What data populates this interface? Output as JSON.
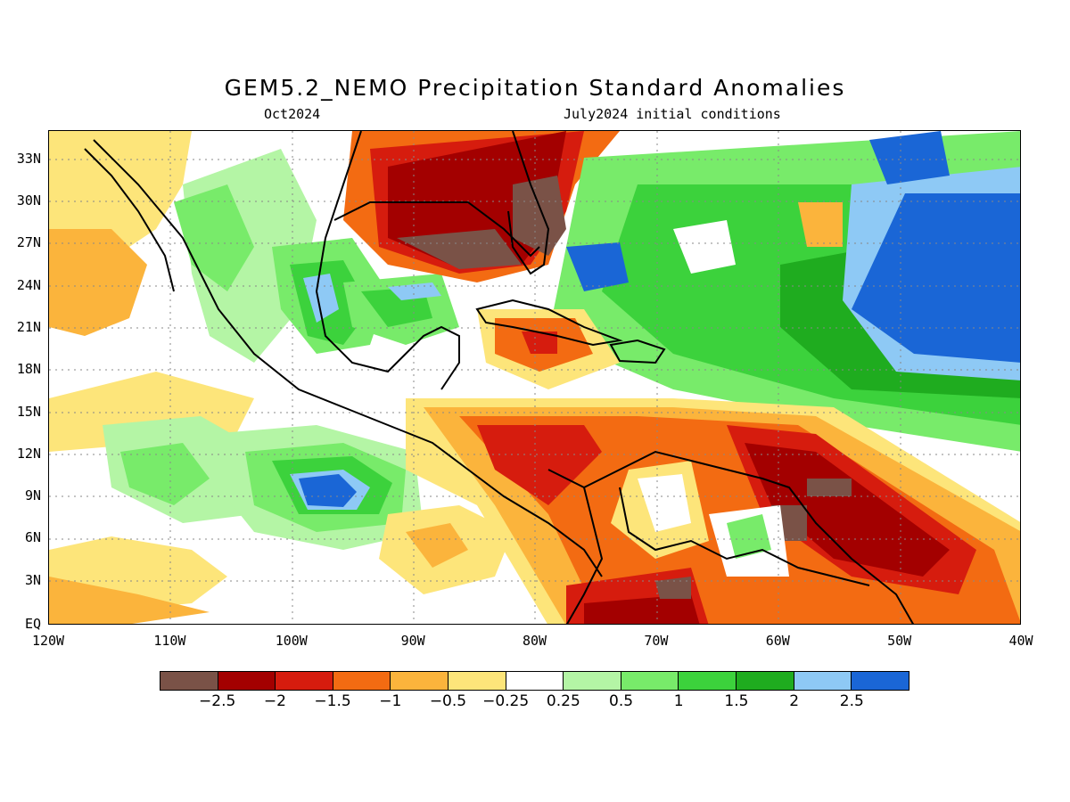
{
  "title": "GEM5.2_NEMO Precipitation Standard Anomalies",
  "subtitle_left": "Oct2024",
  "subtitle_right": "July2024 initial conditions",
  "lat_labels": [
    "33N",
    "30N",
    "27N",
    "24N",
    "21N",
    "18N",
    "15N",
    "12N",
    "9N",
    "6N",
    "3N",
    "EQ"
  ],
  "lon_labels": [
    "120W",
    "110W",
    "100W",
    "90W",
    "80W",
    "70W",
    "60W",
    "50W",
    "40W"
  ],
  "legend": {
    "colors": [
      "#7a5247",
      "#a30000",
      "#d61c0e",
      "#f36b12",
      "#fbb43c",
      "#fde57a",
      "#ffffff",
      "#b4f5a5",
      "#78eb6a",
      "#3cd23c",
      "#1fac1f",
      "#8ec9f5",
      "#1a66d6"
    ],
    "labels": [
      "-2.5",
      "-2",
      "-1.5",
      "-1",
      "-0.5",
      "-0.25",
      "0.25",
      "0.5",
      "1",
      "1.5",
      "2",
      "2.5"
    ]
  },
  "field_colors": {
    "neg4": "#7a5247",
    "neg3": "#a30000",
    "neg2": "#d61c0e",
    "neg1": "#f36b12",
    "neg05": "#fbb43c",
    "neg025": "#fde57a",
    "pos025": "#b4f5a5",
    "pos05": "#78eb6a",
    "pos1": "#3cd23c",
    "pos15": "#1fac1f",
    "pos2": "#8ec9f5",
    "pos25": "#1a66d6"
  }
}
